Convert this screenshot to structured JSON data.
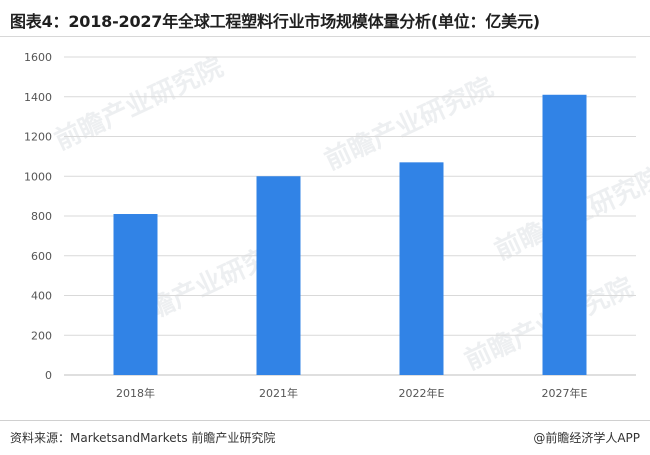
{
  "header": {
    "title": "图表4：2018-2027年全球工程塑料行业市场规模体量分析(单位：亿美元)"
  },
  "footer": {
    "source": "资料来源：MarketsandMarkets 前瞻产业研究院",
    "brand": "@前瞻经济学人APP"
  },
  "watermark": {
    "text": "前瞻产业研究院"
  },
  "chart_data": {
    "type": "bar",
    "categories": [
      "2018年",
      "2021年",
      "2022年E",
      "2027年E"
    ],
    "values": [
      810,
      1000,
      1070,
      1410
    ],
    "ylim": [
      0,
      1600
    ],
    "yticks": [
      0,
      200,
      400,
      600,
      800,
      1000,
      1200,
      1400,
      1600
    ],
    "grid": true,
    "bar_color": "#3183e6",
    "grid_color": "#d9d9d9"
  }
}
